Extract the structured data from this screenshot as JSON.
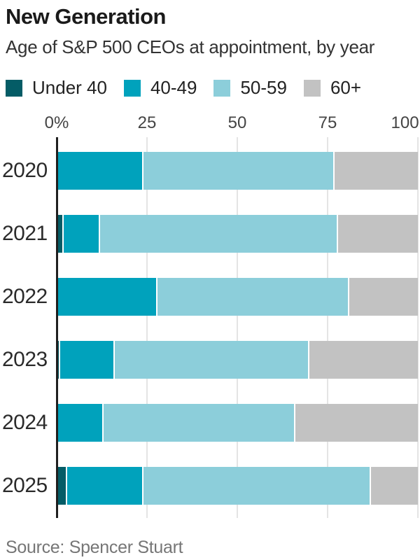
{
  "header": {
    "title": "New Generation",
    "subtitle": "Age of S&P 500 CEOs at appointment, by year"
  },
  "source": "Source: Spencer Stuart",
  "colors": {
    "axis": "#1f1f1f",
    "gridline": "#e4e4e4",
    "title_text": "#1a1a1a",
    "body_text": "#333333",
    "tick_text": "#444444",
    "source_text": "#767676"
  },
  "chart_data": {
    "type": "bar",
    "orientation": "horizontal",
    "stacked": true,
    "title": "New Generation",
    "subtitle": "Age of S&P 500 CEOs at appointment, by year",
    "categories": [
      "2020",
      "2021",
      "2022",
      "2023",
      "2024",
      "2025"
    ],
    "series": [
      {
        "name": "Under 40",
        "color": "#045c66",
        "values": [
          0,
          2,
          0,
          1,
          0,
          3
        ]
      },
      {
        "name": "40-49",
        "color": "#00a2bc",
        "values": [
          24,
          10,
          28,
          15,
          13,
          21
        ]
      },
      {
        "name": "50-59",
        "color": "#8cceda",
        "values": [
          53,
          66,
          53,
          54,
          53,
          63
        ]
      },
      {
        "name": "60+",
        "color": "#c2c2c2",
        "values": [
          23,
          22,
          19,
          30,
          34,
          13
        ]
      }
    ],
    "xlim": [
      0,
      100
    ],
    "x_ticks": [
      "0%",
      "25",
      "50",
      "75",
      "100"
    ],
    "x_tick_values": [
      0,
      25,
      50,
      75,
      100
    ],
    "unit": "percent",
    "legend_position": "top",
    "grid": true
  }
}
